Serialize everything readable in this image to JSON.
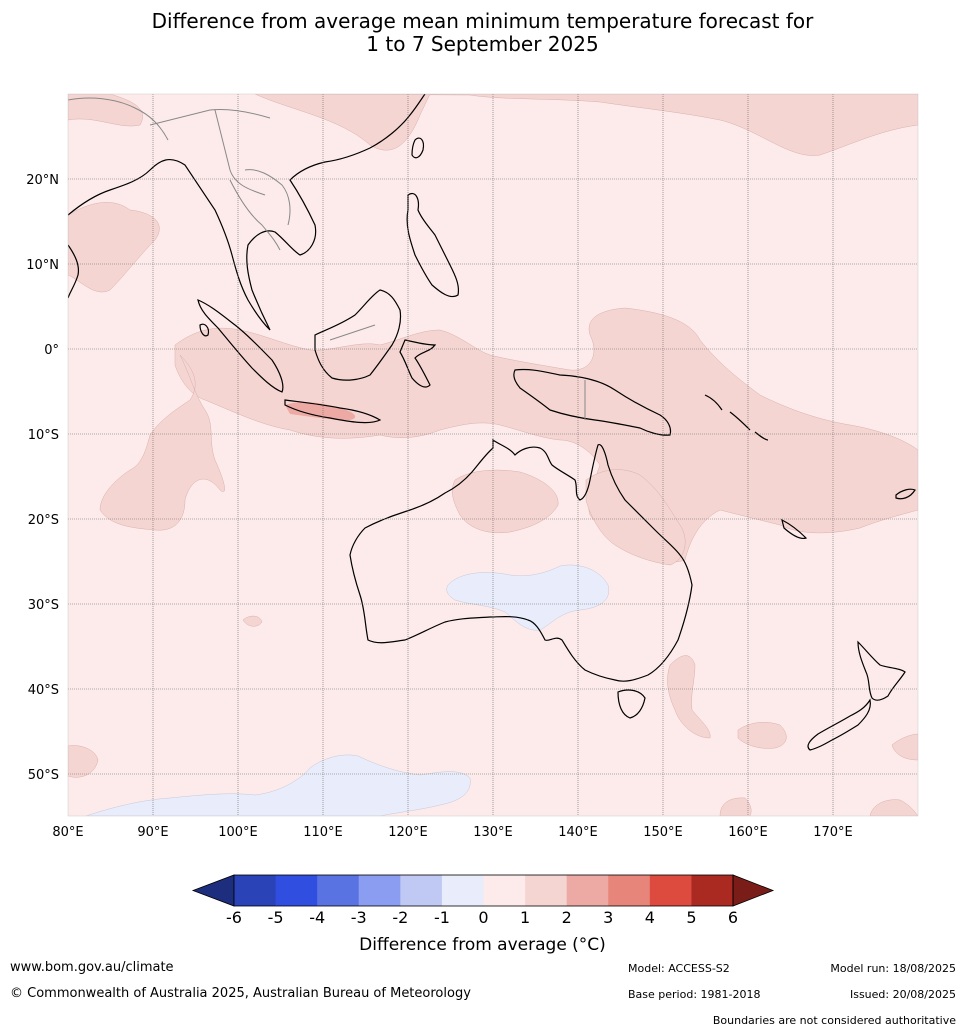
{
  "title_line1": "Difference from average mean minimum temperature forecast for",
  "title_line2": "1 to 7 September 2025",
  "map": {
    "lon_labels": [
      "80°E",
      "90°E",
      "100°E",
      "110°E",
      "120°E",
      "130°E",
      "140°E",
      "150°E",
      "160°E",
      "170°E"
    ],
    "lat_labels": [
      "20°N",
      "10°N",
      "0°",
      "10°S",
      "20°S",
      "30°S",
      "40°S",
      "50°S"
    ],
    "background_color": "#fcebea",
    "anomaly_0_1_color": "#fcebea",
    "anomaly_1_2_color": "#f5d5d2",
    "anomaly_2_3_color": "#edaaa5",
    "anomaly_neg1_0_color": "#e8ecfb",
    "coastline_color": "#000000",
    "border_color": "#888888"
  },
  "colorbar": {
    "ticks": [
      "-6",
      "-5",
      "-4",
      "-3",
      "-2",
      "-1",
      "0",
      "1",
      "2",
      "3",
      "4",
      "5",
      "6"
    ],
    "colors": [
      "#1e2e7e",
      "#2a44b8",
      "#304fe0",
      "#5a73e3",
      "#8a9df0",
      "#c0c9f4",
      "#e8ecfb",
      "#fcebea",
      "#f5d5d2",
      "#edaaa5",
      "#e8857b",
      "#dc4b3e",
      "#aa2a22",
      "#7a1c18"
    ],
    "title": "Difference from average (°C)"
  },
  "footer": {
    "website": "www.bom.gov.au/climate",
    "copyright": "© Commonwealth of Australia 2025, Australian Bureau of Meteorology",
    "model": "Model: ACCESS-S2",
    "base_period": "Base period: 1981-2018",
    "model_run": "Model run: 18/08/2025",
    "issued": "Issued: 20/08/2025",
    "disclaimer": "Boundaries are not considered authoritative"
  }
}
